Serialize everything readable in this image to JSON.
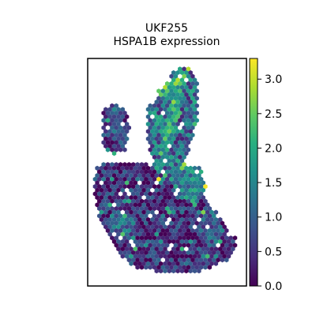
{
  "chart_data": {
    "type": "scatter",
    "title": "UKF255",
    "subtitle": "HSPA1B expression",
    "xlabel": "",
    "ylabel": "",
    "colorbar": {
      "min": 0.0,
      "max": 3.3,
      "ticks": [
        "0.0",
        "0.5",
        "1.0",
        "1.5",
        "2.0",
        "2.5",
        "3.0"
      ],
      "colormap": "viridis",
      "placement": "right"
    },
    "marker": "hexagon",
    "grid": false,
    "regions": [
      {
        "name": "top-right-lobe",
        "polygon": [
          [
            0.38,
            0.78
          ],
          [
            0.5,
            0.9
          ],
          [
            0.57,
            0.97
          ],
          [
            0.65,
            0.96
          ],
          [
            0.7,
            0.88
          ],
          [
            0.69,
            0.72
          ],
          [
            0.62,
            0.55
          ],
          [
            0.55,
            0.45
          ],
          [
            0.46,
            0.44
          ],
          [
            0.42,
            0.52
          ],
          [
            0.37,
            0.66
          ]
        ],
        "mean": 1.15,
        "spread": 0.9
      },
      {
        "name": "bright-stripe",
        "polygon": [
          [
            0.45,
            0.62
          ],
          [
            0.5,
            0.74
          ],
          [
            0.53,
            0.82
          ],
          [
            0.58,
            0.88
          ],
          [
            0.62,
            0.84
          ],
          [
            0.58,
            0.75
          ],
          [
            0.54,
            0.64
          ],
          [
            0.5,
            0.56
          ],
          [
            0.46,
            0.56
          ]
        ],
        "mean": 1.9,
        "spread": 0.7
      },
      {
        "name": "top-ridge",
        "polygon": [
          [
            0.43,
            0.85
          ],
          [
            0.52,
            0.9
          ],
          [
            0.58,
            0.94
          ],
          [
            0.63,
            0.93
          ],
          [
            0.6,
            0.89
          ],
          [
            0.53,
            0.86
          ],
          [
            0.46,
            0.82
          ]
        ],
        "mean": 2.2,
        "spread": 0.8
      },
      {
        "name": "left-island",
        "polygon": [
          [
            0.1,
            0.78
          ],
          [
            0.16,
            0.8
          ],
          [
            0.24,
            0.78
          ],
          [
            0.27,
            0.7
          ],
          [
            0.24,
            0.6
          ],
          [
            0.16,
            0.57
          ],
          [
            0.1,
            0.62
          ]
        ],
        "mean": 0.6,
        "spread": 0.6
      },
      {
        "name": "main-body",
        "polygon": [
          [
            0.05,
            0.52
          ],
          [
            0.15,
            0.55
          ],
          [
            0.3,
            0.54
          ],
          [
            0.45,
            0.54
          ],
          [
            0.55,
            0.52
          ],
          [
            0.7,
            0.5
          ],
          [
            0.74,
            0.4
          ],
          [
            0.8,
            0.32
          ],
          [
            0.88,
            0.26
          ],
          [
            0.94,
            0.2
          ],
          [
            0.9,
            0.12
          ],
          [
            0.8,
            0.09
          ],
          [
            0.7,
            0.06
          ],
          [
            0.48,
            0.05
          ],
          [
            0.3,
            0.08
          ],
          [
            0.18,
            0.15
          ],
          [
            0.09,
            0.26
          ],
          [
            0.04,
            0.4
          ]
        ],
        "mean": 0.45,
        "spread": 0.7
      },
      {
        "name": "right-band",
        "polygon": [
          [
            0.55,
            0.52
          ],
          [
            0.7,
            0.53
          ],
          [
            0.75,
            0.44
          ],
          [
            0.7,
            0.36
          ],
          [
            0.6,
            0.38
          ],
          [
            0.53,
            0.46
          ]
        ],
        "mean": 1.5,
        "spread": 0.7
      },
      {
        "name": "lower-left-patch",
        "polygon": [
          [
            0.12,
            0.3
          ],
          [
            0.24,
            0.34
          ],
          [
            0.3,
            0.26
          ],
          [
            0.24,
            0.2
          ],
          [
            0.14,
            0.22
          ]
        ],
        "mean": 1.1,
        "spread": 0.6
      },
      {
        "name": "lower-right-patch",
        "polygon": [
          [
            0.68,
            0.34
          ],
          [
            0.8,
            0.34
          ],
          [
            0.86,
            0.24
          ],
          [
            0.8,
            0.16
          ],
          [
            0.7,
            0.2
          ]
        ],
        "mean": 0.95,
        "spread": 0.6
      }
    ]
  }
}
